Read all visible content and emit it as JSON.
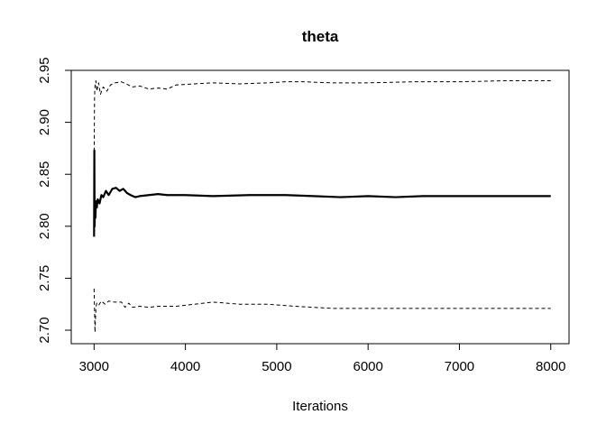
{
  "chart_data": {
    "type": "line",
    "title": "theta",
    "xlabel": "Iterations",
    "ylabel": "",
    "xlim": [
      2750,
      8200
    ],
    "ylim": [
      2.687,
      2.95
    ],
    "x_ticks": [
      3000,
      4000,
      5000,
      6000,
      7000,
      8000
    ],
    "x_tick_labels": [
      "3000",
      "4000",
      "5000",
      "6000",
      "7000",
      "8000"
    ],
    "y_ticks": [
      2.7,
      2.75,
      2.8,
      2.85,
      2.9,
      2.95
    ],
    "y_tick_labels": [
      "2.70",
      "2.75",
      "2.80",
      "2.85",
      "2.90",
      "2.95"
    ],
    "grid": false,
    "legend": "none",
    "series": [
      {
        "style": "solid",
        "color": "#000000",
        "points": [
          [
            3000,
            2.79
          ],
          [
            3003,
            2.873
          ],
          [
            3006,
            2.8
          ],
          [
            3010,
            2.82
          ],
          [
            3015,
            2.808
          ],
          [
            3020,
            2.824
          ],
          [
            3030,
            2.818
          ],
          [
            3040,
            2.826
          ],
          [
            3060,
            2.822
          ],
          [
            3080,
            2.83
          ],
          [
            3100,
            2.828
          ],
          [
            3130,
            2.834
          ],
          [
            3160,
            2.83
          ],
          [
            3200,
            2.836
          ],
          [
            3240,
            2.837
          ],
          [
            3280,
            2.834
          ],
          [
            3320,
            2.836
          ],
          [
            3360,
            2.832
          ],
          [
            3400,
            2.83
          ],
          [
            3450,
            2.828
          ],
          [
            3500,
            2.829
          ],
          [
            3600,
            2.83
          ],
          [
            3700,
            2.831
          ],
          [
            3800,
            2.83
          ],
          [
            4000,
            2.83
          ],
          [
            4300,
            2.829
          ],
          [
            4700,
            2.83
          ],
          [
            5100,
            2.83
          ],
          [
            5400,
            2.829
          ],
          [
            5700,
            2.828
          ],
          [
            6000,
            2.829
          ],
          [
            6300,
            2.828
          ],
          [
            6600,
            2.829
          ],
          [
            7000,
            2.829
          ],
          [
            7500,
            2.829
          ],
          [
            8000,
            2.829
          ]
        ]
      },
      {
        "style": "dashed",
        "color": "#000000",
        "points": [
          [
            3000,
            2.86
          ],
          [
            3005,
            2.925
          ],
          [
            3010,
            2.935
          ],
          [
            3020,
            2.94
          ],
          [
            3030,
            2.93
          ],
          [
            3050,
            2.938
          ],
          [
            3070,
            2.927
          ],
          [
            3100,
            2.934
          ],
          [
            3140,
            2.93
          ],
          [
            3180,
            2.936
          ],
          [
            3230,
            2.938
          ],
          [
            3300,
            2.939
          ],
          [
            3350,
            2.937
          ],
          [
            3420,
            2.934
          ],
          [
            3500,
            2.935
          ],
          [
            3600,
            2.932
          ],
          [
            3700,
            2.933
          ],
          [
            3800,
            2.932
          ],
          [
            3900,
            2.936
          ],
          [
            4100,
            2.937
          ],
          [
            4300,
            2.938
          ],
          [
            4600,
            2.937
          ],
          [
            4900,
            2.938
          ],
          [
            5100,
            2.939
          ],
          [
            5300,
            2.939
          ],
          [
            5600,
            2.938
          ],
          [
            6000,
            2.938
          ],
          [
            6500,
            2.939
          ],
          [
            7000,
            2.939
          ],
          [
            7500,
            2.94
          ],
          [
            8000,
            2.94
          ]
        ]
      },
      {
        "style": "dashed",
        "color": "#000000",
        "points": [
          [
            3000,
            2.74
          ],
          [
            3005,
            2.72
          ],
          [
            3010,
            2.698
          ],
          [
            3020,
            2.722
          ],
          [
            3030,
            2.726
          ],
          [
            3050,
            2.724
          ],
          [
            3080,
            2.728
          ],
          [
            3120,
            2.725
          ],
          [
            3160,
            2.728
          ],
          [
            3220,
            2.727
          ],
          [
            3300,
            2.727
          ],
          [
            3340,
            2.722
          ],
          [
            3380,
            2.726
          ],
          [
            3420,
            2.722
          ],
          [
            3500,
            2.723
          ],
          [
            3600,
            2.722
          ],
          [
            3700,
            2.723
          ],
          [
            3900,
            2.723
          ],
          [
            4100,
            2.725
          ],
          [
            4300,
            2.727
          ],
          [
            4600,
            2.725
          ],
          [
            4900,
            2.725
          ],
          [
            5200,
            2.723
          ],
          [
            5600,
            2.721
          ],
          [
            6000,
            2.721
          ],
          [
            6500,
            2.721
          ],
          [
            7000,
            2.721
          ],
          [
            7500,
            2.721
          ],
          [
            8000,
            2.721
          ]
        ]
      }
    ]
  }
}
